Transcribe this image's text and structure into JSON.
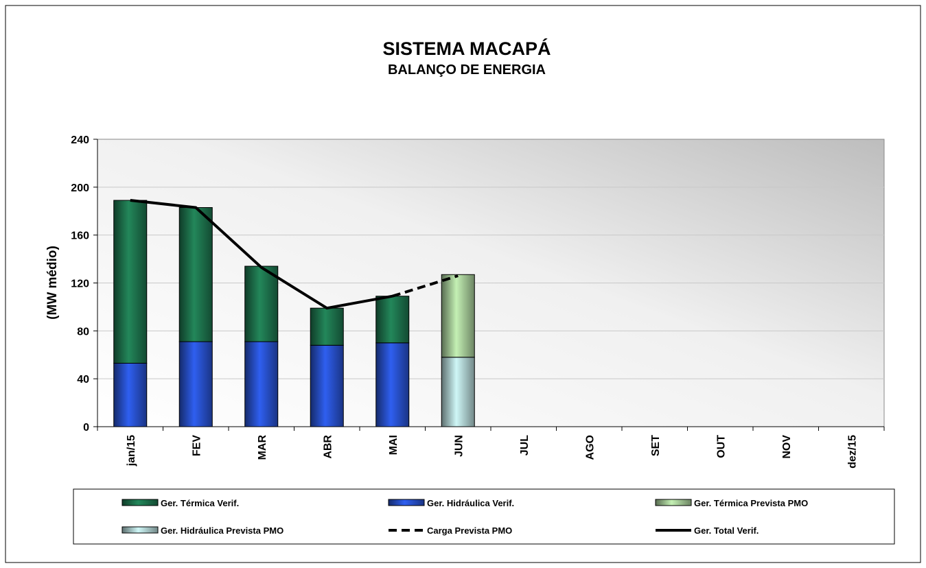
{
  "chart_data": {
    "type": "bar",
    "title": "SISTEMA MACAPÁ",
    "subtitle": "BALANÇO DE ENERGIA",
    "y_label": "(MW médio)",
    "categories": [
      "jan/15",
      "FEV",
      "MAR",
      "ABR",
      "MAI",
      "JUN",
      "JUL",
      "AGO",
      "SET",
      "OUT",
      "NOV",
      "dez/15"
    ],
    "series": [
      {
        "name": "Ger. Térmica Verif.",
        "type": "bar",
        "color": "#23875a",
        "values": [
          136,
          112,
          63,
          31,
          39,
          null,
          null,
          null,
          null,
          null,
          null,
          null
        ]
      },
      {
        "name": "Ger. Hidráulica Verif.",
        "type": "bar",
        "color": "#2f5ff0",
        "values": [
          53,
          71,
          71,
          68,
          70,
          null,
          null,
          null,
          null,
          null,
          null,
          null
        ]
      },
      {
        "name": "Ger. Térmica Prevista PMO",
        "type": "bar",
        "color": "#c4f0b4",
        "values": [
          null,
          null,
          null,
          null,
          null,
          69,
          null,
          null,
          null,
          null,
          null,
          null
        ]
      },
      {
        "name": "Ger. Hidráulica Prevista PMO",
        "type": "bar",
        "color": "#cff7f7",
        "values": [
          null,
          null,
          null,
          null,
          null,
          58,
          null,
          null,
          null,
          null,
          null,
          null
        ]
      },
      {
        "name": "Carga Prevista PMO",
        "type": "line",
        "dash": true,
        "color": "#000000",
        "values": [
          null,
          null,
          null,
          null,
          109,
          126,
          null,
          null,
          null,
          null,
          null,
          null
        ]
      },
      {
        "name": "Ger. Total Verif.",
        "type": "line",
        "dash": false,
        "color": "#000000",
        "values": [
          189,
          183,
          133,
          99,
          109,
          null,
          null,
          null,
          null,
          null,
          null,
          null
        ]
      }
    ],
    "ylim": [
      0,
      240
    ],
    "yticks": [
      0,
      40,
      80,
      120,
      160,
      200,
      240
    ],
    "grid": true
  }
}
